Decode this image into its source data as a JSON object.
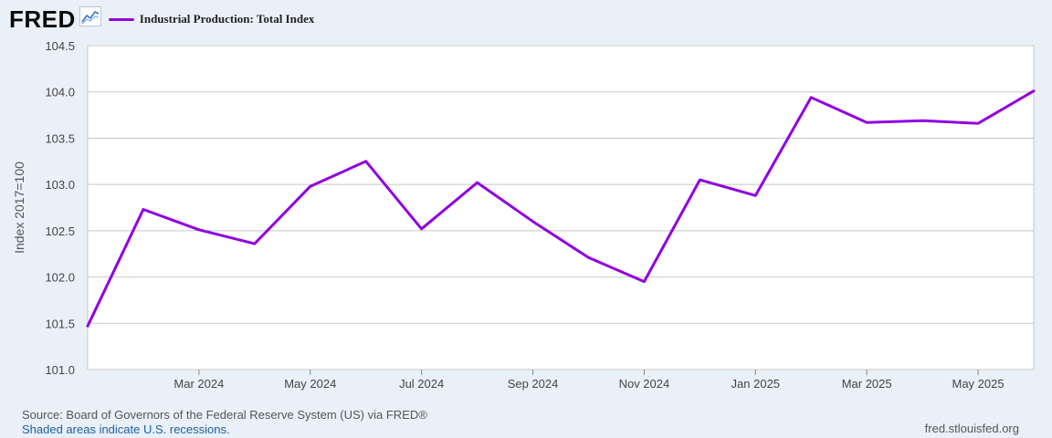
{
  "header": {
    "logo_text": "FRED",
    "logo_icon": "chart-line-icon"
  },
  "footer": {
    "source": "Source: Board of Governors of the Federal Reserve System (US) via FRED®",
    "recession_note": "Shaded areas indicate U.S. recessions.",
    "site": "fred.stlouisfed.org"
  },
  "colors": {
    "series": "#9100e0",
    "background": "#e9f0f8",
    "plot_area": "#ffffff",
    "grid": "#c8c8c8"
  },
  "chart_data": {
    "type": "line",
    "title": "",
    "xlabel": "",
    "ylabel": "Index 2017=100",
    "ylim": [
      101.0,
      104.5
    ],
    "yticks": [
      "101.0",
      "101.5",
      "102.0",
      "102.5",
      "103.0",
      "103.5",
      "104.0",
      "104.5"
    ],
    "xlim": [
      "2024-01",
      "2025-06"
    ],
    "xtick_labels": [
      {
        "month": "2024-03",
        "label": "Mar 2024"
      },
      {
        "month": "2024-05",
        "label": "May 2024"
      },
      {
        "month": "2024-07",
        "label": "Jul 2024"
      },
      {
        "month": "2024-09",
        "label": "Sep 2024"
      },
      {
        "month": "2024-11",
        "label": "Nov 2024"
      },
      {
        "month": "2025-01",
        "label": "Jan 2025"
      },
      {
        "month": "2025-03",
        "label": "Mar 2025"
      },
      {
        "month": "2025-05",
        "label": "May 2025"
      }
    ],
    "grid": true,
    "legend_position": "top-left",
    "series": [
      {
        "name": "Industrial Production: Total Index",
        "color": "#9100e0",
        "x": [
          "2024-01",
          "2024-02",
          "2024-03",
          "2024-04",
          "2024-05",
          "2024-06",
          "2024-07",
          "2024-08",
          "2024-09",
          "2024-10",
          "2024-11",
          "2024-12",
          "2025-01",
          "2025-02",
          "2025-03",
          "2025-04",
          "2025-05",
          "2025-06"
        ],
        "values": [
          101.47,
          102.73,
          102.51,
          102.36,
          102.98,
          103.25,
          102.52,
          103.02,
          102.6,
          102.21,
          101.95,
          103.05,
          102.88,
          103.94,
          103.67,
          103.69,
          103.66,
          104.01
        ]
      }
    ]
  }
}
